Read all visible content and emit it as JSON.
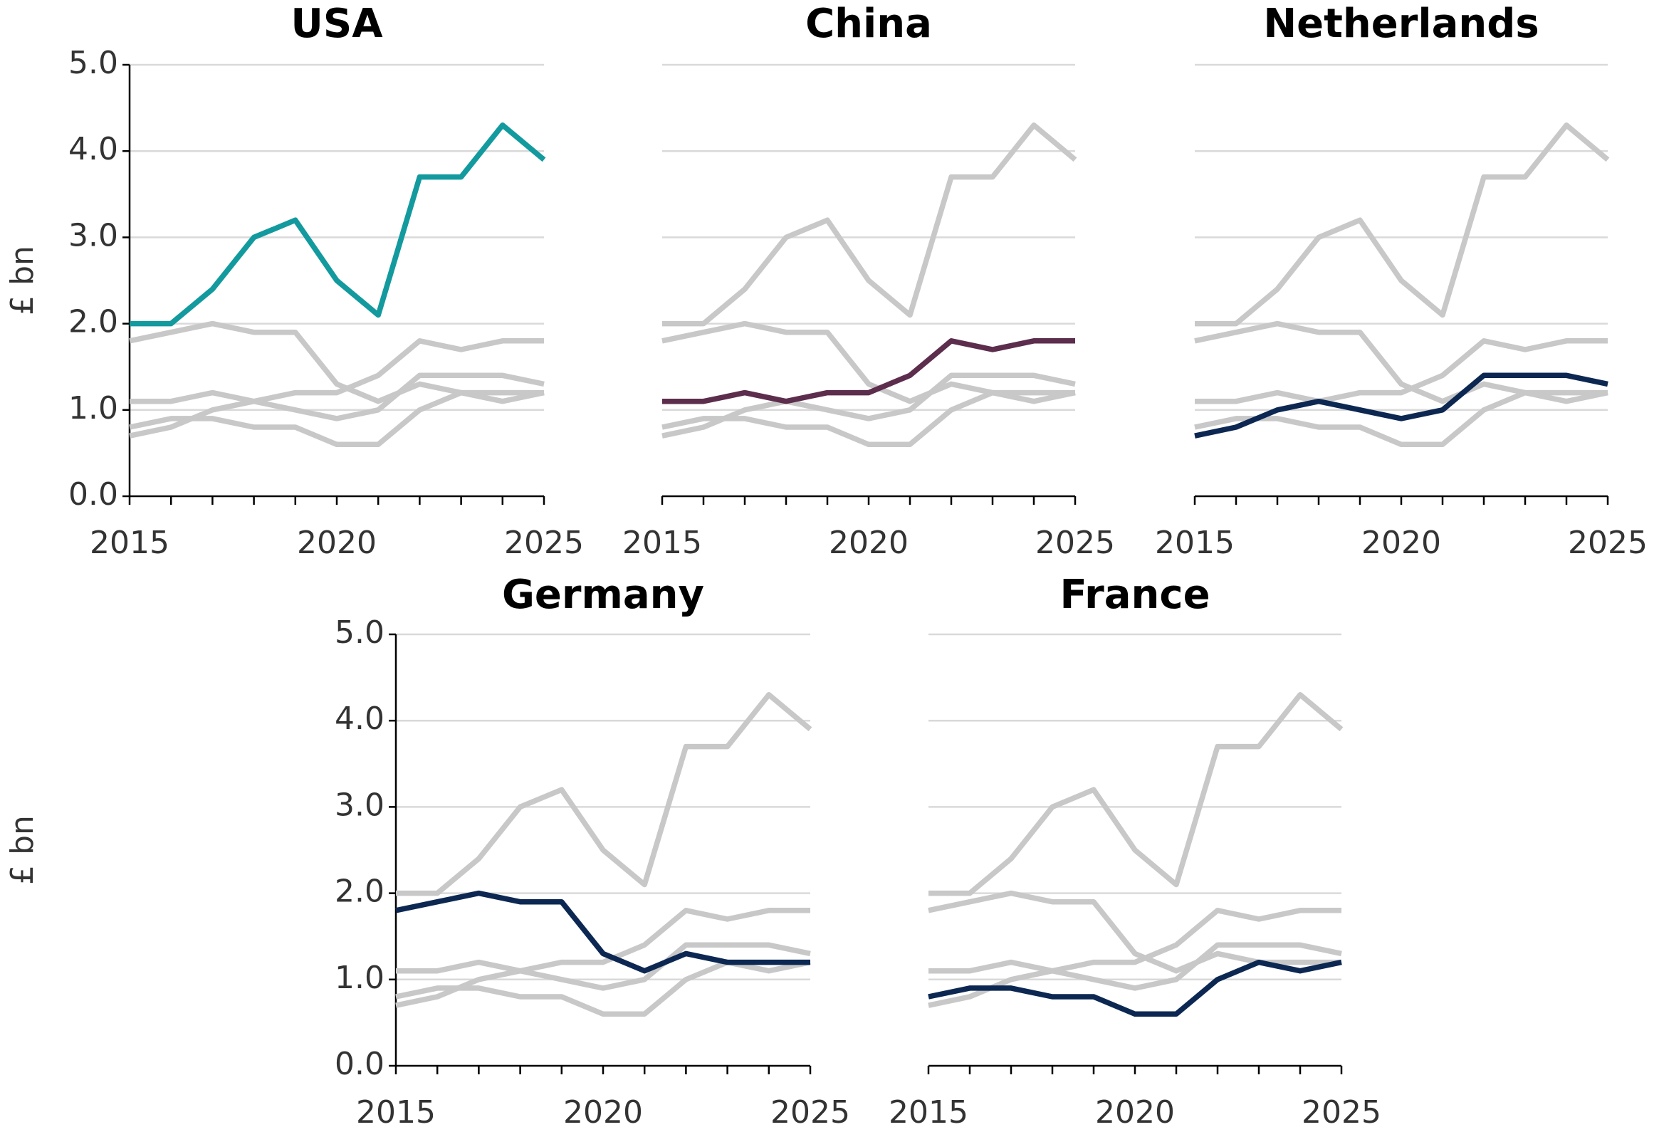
{
  "chart_data": [
    {
      "type": "line",
      "title": "USA",
      "ylabel": "£ bn",
      "y_axis": true,
      "x": [
        2015,
        2016,
        2017,
        2018,
        2019,
        2020,
        2021,
        2022,
        2023,
        2024,
        2025
      ],
      "xlim": [
        2015,
        2025
      ],
      "xticks": [
        2015,
        2020,
        2025
      ],
      "ylim": [
        0,
        5
      ],
      "yticks": [
        {
          "value": 0,
          "label": "0.0"
        },
        {
          "value": 1,
          "label": "1.0"
        },
        {
          "value": 2,
          "label": "2.0"
        },
        {
          "value": 3,
          "label": "3.0"
        },
        {
          "value": 4,
          "label": "4.0"
        },
        {
          "value": 5,
          "label": "5.0"
        }
      ],
      "grid": true,
      "series": [
        {
          "color": "#139a9e",
          "values": [
            2.0,
            2.0,
            2.4,
            3.0,
            3.2,
            2.5,
            2.1,
            3.7,
            3.7,
            4.3,
            3.9
          ]
        },
        {
          "color": "#c8c8c8",
          "values": [
            1.1,
            1.1,
            1.2,
            1.1,
            1.2,
            1.2,
            1.4,
            1.8,
            1.7,
            1.8,
            1.8
          ]
        },
        {
          "color": "#c8c8c8",
          "values": [
            0.7,
            0.8,
            1.0,
            1.1,
            1.0,
            0.9,
            1.0,
            1.4,
            1.4,
            1.4,
            1.3
          ]
        },
        {
          "color": "#c8c8c8",
          "values": [
            1.8,
            1.9,
            2.0,
            1.9,
            1.9,
            1.3,
            1.1,
            1.3,
            1.2,
            1.2,
            1.2
          ]
        },
        {
          "color": "#c8c8c8",
          "values": [
            0.8,
            0.9,
            0.9,
            0.8,
            0.8,
            0.6,
            0.6,
            1.0,
            1.2,
            1.1,
            1.2
          ]
        }
      ]
    },
    {
      "type": "line",
      "title": "China",
      "y_axis": false,
      "x": [
        2015,
        2016,
        2017,
        2018,
        2019,
        2020,
        2021,
        2022,
        2023,
        2024,
        2025
      ],
      "xlim": [
        2015,
        2025
      ],
      "xticks": [
        2015,
        2020,
        2025
      ],
      "ylim": [
        0,
        5
      ],
      "yticks": [
        0,
        1,
        2,
        3,
        4,
        5
      ],
      "grid": true,
      "series": [
        {
          "color": "#c8c8c8",
          "values": [
            2.0,
            2.0,
            2.4,
            3.0,
            3.2,
            2.5,
            2.1,
            3.7,
            3.7,
            4.3,
            3.9
          ]
        },
        {
          "color": "#5c2d4c",
          "values": [
            1.1,
            1.1,
            1.2,
            1.1,
            1.2,
            1.2,
            1.4,
            1.8,
            1.7,
            1.8,
            1.8
          ]
        },
        {
          "color": "#c8c8c8",
          "values": [
            0.7,
            0.8,
            1.0,
            1.1,
            1.0,
            0.9,
            1.0,
            1.4,
            1.4,
            1.4,
            1.3
          ]
        },
        {
          "color": "#c8c8c8",
          "values": [
            1.8,
            1.9,
            2.0,
            1.9,
            1.9,
            1.3,
            1.1,
            1.3,
            1.2,
            1.2,
            1.2
          ]
        },
        {
          "color": "#c8c8c8",
          "values": [
            0.8,
            0.9,
            0.9,
            0.8,
            0.8,
            0.6,
            0.6,
            1.0,
            1.2,
            1.1,
            1.2
          ]
        }
      ]
    },
    {
      "type": "line",
      "title": "Netherlands",
      "y_axis": false,
      "x": [
        2015,
        2016,
        2017,
        2018,
        2019,
        2020,
        2021,
        2022,
        2023,
        2024,
        2025
      ],
      "xlim": [
        2015,
        2025
      ],
      "xticks": [
        2015,
        2020,
        2025
      ],
      "ylim": [
        0,
        5
      ],
      "yticks": [
        0,
        1,
        2,
        3,
        4,
        5
      ],
      "grid": true,
      "series": [
        {
          "color": "#c8c8c8",
          "values": [
            2.0,
            2.0,
            2.4,
            3.0,
            3.2,
            2.5,
            2.1,
            3.7,
            3.7,
            4.3,
            3.9
          ]
        },
        {
          "color": "#c8c8c8",
          "values": [
            1.1,
            1.1,
            1.2,
            1.1,
            1.2,
            1.2,
            1.4,
            1.8,
            1.7,
            1.8,
            1.8
          ]
        },
        {
          "color": "#0c2852",
          "values": [
            0.7,
            0.8,
            1.0,
            1.1,
            1.0,
            0.9,
            1.0,
            1.4,
            1.4,
            1.4,
            1.3
          ]
        },
        {
          "color": "#c8c8c8",
          "values": [
            1.8,
            1.9,
            2.0,
            1.9,
            1.9,
            1.3,
            1.1,
            1.3,
            1.2,
            1.2,
            1.2
          ]
        },
        {
          "color": "#c8c8c8",
          "values": [
            0.8,
            0.9,
            0.9,
            0.8,
            0.8,
            0.6,
            0.6,
            1.0,
            1.2,
            1.1,
            1.2
          ]
        }
      ]
    },
    {
      "type": "line",
      "title": "Germany",
      "ylabel": "£ bn",
      "y_axis": true,
      "x": [
        2015,
        2016,
        2017,
        2018,
        2019,
        2020,
        2021,
        2022,
        2023,
        2024,
        2025
      ],
      "xlim": [
        2015,
        2025
      ],
      "xticks": [
        2015,
        2020,
        2025
      ],
      "ylim": [
        0,
        5
      ],
      "yticks": [
        {
          "value": 0,
          "label": "0.0"
        },
        {
          "value": 1,
          "label": "1.0"
        },
        {
          "value": 2,
          "label": "2.0"
        },
        {
          "value": 3,
          "label": "3.0"
        },
        {
          "value": 4,
          "label": "4.0"
        },
        {
          "value": 5,
          "label": "5.0"
        }
      ],
      "grid": true,
      "series": [
        {
          "color": "#c8c8c8",
          "values": [
            2.0,
            2.0,
            2.4,
            3.0,
            3.2,
            2.5,
            2.1,
            3.7,
            3.7,
            4.3,
            3.9
          ]
        },
        {
          "color": "#c8c8c8",
          "values": [
            1.1,
            1.1,
            1.2,
            1.1,
            1.2,
            1.2,
            1.4,
            1.8,
            1.7,
            1.8,
            1.8
          ]
        },
        {
          "color": "#c8c8c8",
          "values": [
            0.7,
            0.8,
            1.0,
            1.1,
            1.0,
            0.9,
            1.0,
            1.4,
            1.4,
            1.4,
            1.3
          ]
        },
        {
          "color": "#0c2852",
          "values": [
            1.8,
            1.9,
            2.0,
            1.9,
            1.9,
            1.3,
            1.1,
            1.3,
            1.2,
            1.2,
            1.2
          ]
        },
        {
          "color": "#c8c8c8",
          "values": [
            0.8,
            0.9,
            0.9,
            0.8,
            0.8,
            0.6,
            0.6,
            1.0,
            1.2,
            1.1,
            1.2
          ]
        }
      ]
    },
    {
      "type": "line",
      "title": "France",
      "y_axis": false,
      "x": [
        2015,
        2016,
        2017,
        2018,
        2019,
        2020,
        2021,
        2022,
        2023,
        2024,
        2025
      ],
      "xlim": [
        2015,
        2025
      ],
      "xticks": [
        2015,
        2020,
        2025
      ],
      "ylim": [
        0,
        5
      ],
      "yticks": [
        0,
        1,
        2,
        3,
        4,
        5
      ],
      "grid": true,
      "series": [
        {
          "color": "#c8c8c8",
          "values": [
            2.0,
            2.0,
            2.4,
            3.0,
            3.2,
            2.5,
            2.1,
            3.7,
            3.7,
            4.3,
            3.9
          ]
        },
        {
          "color": "#c8c8c8",
          "values": [
            1.1,
            1.1,
            1.2,
            1.1,
            1.2,
            1.2,
            1.4,
            1.8,
            1.7,
            1.8,
            1.8
          ]
        },
        {
          "color": "#c8c8c8",
          "values": [
            0.7,
            0.8,
            1.0,
            1.1,
            1.0,
            0.9,
            1.0,
            1.4,
            1.4,
            1.4,
            1.3
          ]
        },
        {
          "color": "#c8c8c8",
          "values": [
            1.8,
            1.9,
            2.0,
            1.9,
            1.9,
            1.3,
            1.1,
            1.3,
            1.2,
            1.2,
            1.2
          ]
        },
        {
          "color": "#0c2852",
          "values": [
            0.8,
            0.9,
            0.9,
            0.8,
            0.8,
            0.6,
            0.6,
            1.0,
            1.2,
            1.1,
            1.2
          ]
        }
      ]
    }
  ]
}
